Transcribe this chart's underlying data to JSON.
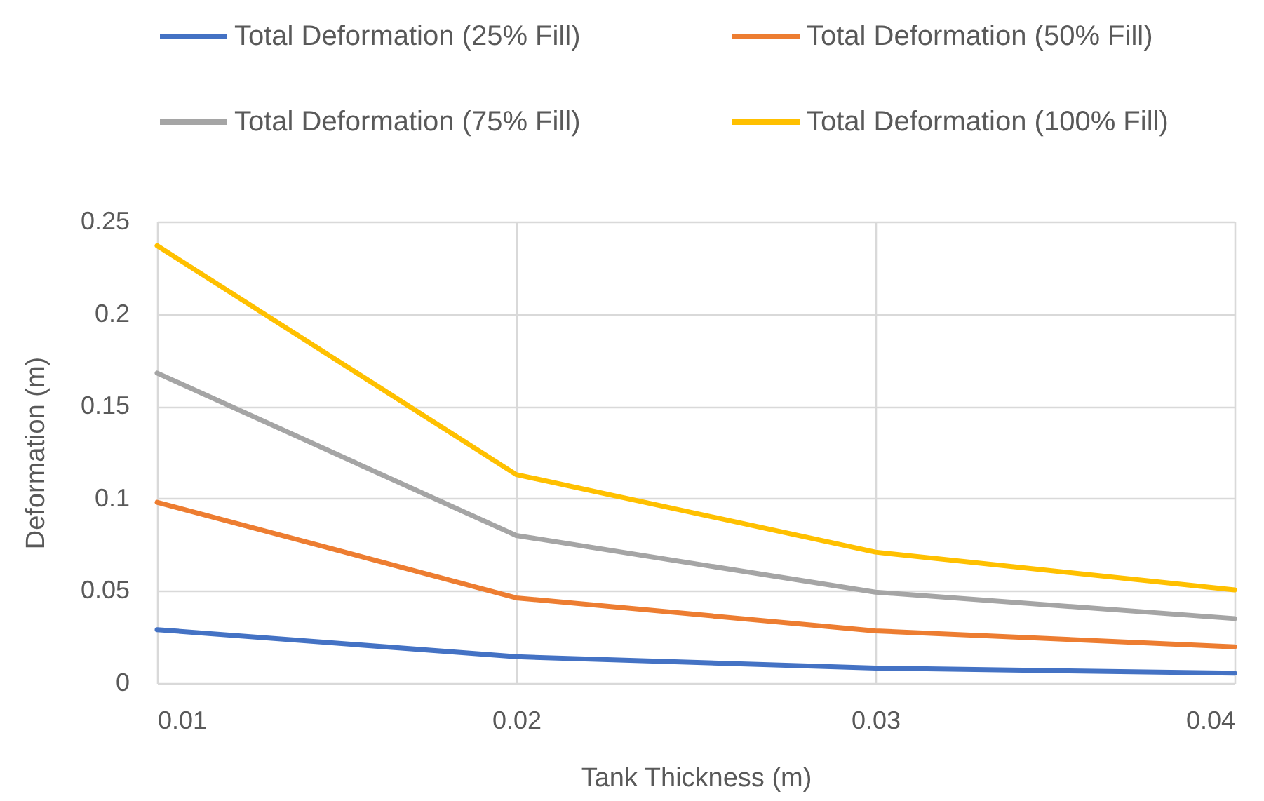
{
  "chart_data": {
    "type": "line",
    "xlabel": "Tank Thickness (m)",
    "ylabel": "Deformation (m)",
    "x": [
      0.01,
      0.02,
      0.03,
      0.04
    ],
    "series": [
      {
        "name": "Total Deformation (25% Fill)",
        "color": "#4472c4",
        "values": [
          0.029,
          0.0143,
          0.0082,
          0.0054
        ]
      },
      {
        "name": "Total Deformation (50% Fill)",
        "color": "#ed7d31",
        "values": [
          0.098,
          0.0462,
          0.0283,
          0.0197
        ]
      },
      {
        "name": "Total Deformation (75% Fill)",
        "color": "#a5a5a5",
        "values": [
          0.168,
          0.08,
          0.0493,
          0.035
        ]
      },
      {
        "name": "Total Deformation (100% Fill)",
        "color": "#ffc000",
        "values": [
          0.237,
          0.113,
          0.071,
          0.0505
        ]
      }
    ],
    "xlim": [
      0.01,
      0.04
    ],
    "xticks": [
      0.01,
      0.02,
      0.03,
      0.04
    ],
    "ylim": [
      0,
      0.25
    ],
    "yticks": [
      0,
      0.05,
      0.1,
      0.15,
      0.2,
      0.25
    ],
    "grid": true,
    "legend": "top",
    "marker": "none",
    "line_style": "solid"
  }
}
